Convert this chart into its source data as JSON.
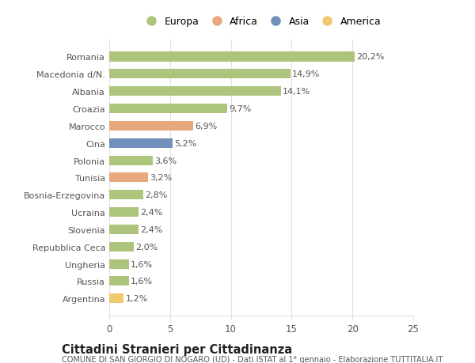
{
  "countries": [
    "Romania",
    "Macedonia d/N.",
    "Albania",
    "Croazia",
    "Marocco",
    "Cina",
    "Polonia",
    "Tunisia",
    "Bosnia-Erzegovina",
    "Ucraina",
    "Slovenia",
    "Repubblica Ceca",
    "Ungheria",
    "Russia",
    "Argentina"
  ],
  "values": [
    20.2,
    14.9,
    14.1,
    9.7,
    6.9,
    5.2,
    3.6,
    3.2,
    2.8,
    2.4,
    2.4,
    2.0,
    1.6,
    1.6,
    1.2
  ],
  "labels": [
    "20,2%",
    "14,9%",
    "14,1%",
    "9,7%",
    "6,9%",
    "5,2%",
    "3,6%",
    "3,2%",
    "2,8%",
    "2,4%",
    "2,4%",
    "2,0%",
    "1,6%",
    "1,6%",
    "1,2%"
  ],
  "continents": [
    "Europa",
    "Europa",
    "Europa",
    "Europa",
    "Africa",
    "Asia",
    "Europa",
    "Africa",
    "Europa",
    "Europa",
    "Europa",
    "Europa",
    "Europa",
    "Europa",
    "America"
  ],
  "colors": {
    "Europa": "#adc47d",
    "Africa": "#e8a87c",
    "Asia": "#7090bb",
    "America": "#f0c96e"
  },
  "legend_order": [
    "Europa",
    "Africa",
    "Asia",
    "America"
  ],
  "xlim": [
    0,
    25
  ],
  "xticks": [
    0,
    5,
    10,
    15,
    20,
    25
  ],
  "title": "Cittadini Stranieri per Cittadinanza",
  "subtitle": "COMUNE DI SAN GIORGIO DI NOGARO (UD) - Dati ISTAT al 1° gennaio - Elaborazione TUTTITALIA.IT",
  "bg_color": "#ffffff",
  "grid_color": "#e0e0e0",
  "bar_height": 0.55,
  "text_color": "#555555",
  "label_fontsize": 8.0,
  "ytick_fontsize": 8.0,
  "xtick_fontsize": 8.5,
  "title_fontsize": 10.5,
  "subtitle_fontsize": 7.0
}
